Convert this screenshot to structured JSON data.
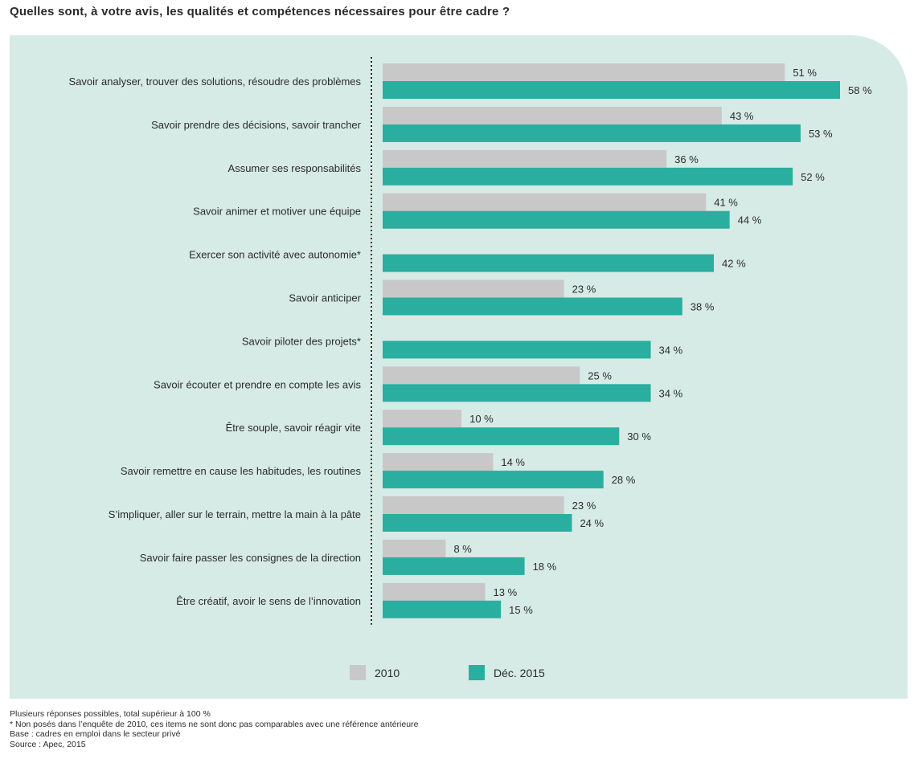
{
  "title": "Quelles sont, à votre avis, les qualités et compétences nécessaires pour être cadre ?",
  "chart_data": {
    "type": "bar",
    "orientation": "horizontal",
    "value_suffix": " %",
    "categories": [
      "Savoir analyser, trouver des solutions, résoudre des problèmes",
      "Savoir prendre des décisions, savoir trancher",
      "Assumer ses responsabilités",
      "Savoir animer et motiver une équipe",
      "Exercer son activité avec autonomie*",
      "Savoir anticiper",
      "Savoir piloter des projets*",
      "Savoir écouter et prendre en compte les avis",
      "Être souple, savoir réagir vite",
      "Savoir remettre en cause les habitudes, les routines",
      "S’impliquer, aller sur le terrain, mettre la main à la pâte",
      "Savoir faire passer les consignes de la direction",
      "Être créatif, avoir le sens de l’innovation"
    ],
    "series": [
      {
        "name": "2010",
        "color": "#c8c8c8",
        "values": [
          51,
          43,
          36,
          41,
          null,
          23,
          null,
          25,
          10,
          14,
          23,
          8,
          13
        ]
      },
      {
        "name": "Déc. 2015",
        "color": "#2aaea0",
        "values": [
          58,
          53,
          52,
          44,
          42,
          38,
          34,
          34,
          30,
          28,
          24,
          18,
          15
        ]
      }
    ],
    "xlim": [
      0,
      58
    ],
    "grid": false,
    "legend_position": "bottom-center"
  },
  "notes": [
    "Plusieurs réponses possibles, total supérieur à 100 %",
    "* Non posés dans l’enquête de 2010, ces items ne sont donc pas comparables avec une référence antérieure",
    "Base : cadres en emploi dans le secteur privé",
    "Source : Apec, 2015"
  ]
}
